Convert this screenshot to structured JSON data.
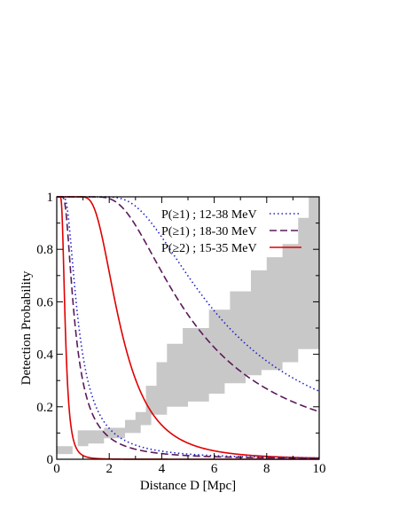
{
  "chart_data": {
    "type": "line",
    "xlabel": "Distance D [Mpc]",
    "ylabel": "Detection Probability",
    "xlim": [
      0,
      10
    ],
    "ylim": [
      0,
      1
    ],
    "x_ticks": [
      0,
      2,
      4,
      6,
      8,
      10
    ],
    "y_ticks": [
      0,
      0.2,
      0.4,
      0.6,
      0.8,
      1
    ],
    "x_tick_labels": [
      "0",
      "2",
      "4",
      "6",
      "8",
      "10"
    ],
    "y_tick_labels": [
      "0",
      "0.2",
      "0.4",
      "0.6",
      "0.8",
      "1"
    ],
    "grid": false,
    "legend_position": "top-right",
    "band": {
      "color": "#c8c8c8",
      "lower": [
        [
          0,
          0.02
        ],
        [
          0.6,
          0.02
        ],
        [
          0.6,
          0.05
        ],
        [
          1.2,
          0.05
        ],
        [
          1.2,
          0.06
        ],
        [
          1.8,
          0.06
        ],
        [
          1.8,
          0.08
        ],
        [
          2.6,
          0.08
        ],
        [
          2.6,
          0.1
        ],
        [
          3.2,
          0.1
        ],
        [
          3.2,
          0.13
        ],
        [
          3.6,
          0.13
        ],
        [
          3.6,
          0.17
        ],
        [
          4.2,
          0.17
        ],
        [
          4.2,
          0.2
        ],
        [
          5.0,
          0.2
        ],
        [
          5.0,
          0.22
        ],
        [
          5.8,
          0.22
        ],
        [
          5.8,
          0.25
        ],
        [
          6.4,
          0.25
        ],
        [
          6.4,
          0.29
        ],
        [
          7.2,
          0.29
        ],
        [
          7.2,
          0.32
        ],
        [
          7.8,
          0.32
        ],
        [
          7.8,
          0.34
        ],
        [
          8.6,
          0.34
        ],
        [
          8.6,
          0.37
        ],
        [
          9.2,
          0.37
        ],
        [
          9.2,
          0.42
        ],
        [
          10,
          0.42
        ]
      ],
      "upper": [
        [
          0,
          0.05
        ],
        [
          0.8,
          0.05
        ],
        [
          0.8,
          0.11
        ],
        [
          1.8,
          0.11
        ],
        [
          1.8,
          0.12
        ],
        [
          2.6,
          0.12
        ],
        [
          2.6,
          0.15
        ],
        [
          3.0,
          0.15
        ],
        [
          3.0,
          0.18
        ],
        [
          3.4,
          0.18
        ],
        [
          3.4,
          0.28
        ],
        [
          3.8,
          0.28
        ],
        [
          3.8,
          0.37
        ],
        [
          4.2,
          0.37
        ],
        [
          4.2,
          0.44
        ],
        [
          4.8,
          0.44
        ],
        [
          4.8,
          0.5
        ],
        [
          5.8,
          0.5
        ],
        [
          5.8,
          0.57
        ],
        [
          6.6,
          0.57
        ],
        [
          6.6,
          0.64
        ],
        [
          7.4,
          0.64
        ],
        [
          7.4,
          0.72
        ],
        [
          8.0,
          0.72
        ],
        [
          8.0,
          0.77
        ],
        [
          8.6,
          0.77
        ],
        [
          8.6,
          0.82
        ],
        [
          9.2,
          0.82
        ],
        [
          9.2,
          0.92
        ],
        [
          9.6,
          0.92
        ],
        [
          9.6,
          1.0
        ],
        [
          10,
          1.0
        ]
      ]
    },
    "series": [
      {
        "name": "P(≥1) ; 12-38 MeV",
        "color": "#2020c8",
        "dash": "dot",
        "k": 0.3,
        "x": [
          0,
          0.5,
          1,
          1.5,
          2,
          2.5,
          3,
          3.5,
          4,
          4.5,
          5,
          5.5,
          6,
          6.5,
          7,
          7.5,
          8,
          8.5,
          9,
          9.5,
          10
        ],
        "y": [
          1,
          1,
          1,
          1,
          0.999,
          0.991,
          0.962,
          0.908,
          0.836,
          0.756,
          0.675,
          0.599,
          0.531,
          0.47,
          0.417,
          0.371,
          0.331,
          0.296,
          0.266,
          0.24,
          0.217
        ]
      },
      {
        "name": "P(≥1) ; 18-30 MeV",
        "color": "#5a1a5a",
        "dash": "dash",
        "k": 0.2,
        "x": [
          0,
          0.5,
          1,
          1.5,
          2,
          2.5,
          3,
          3.5,
          4,
          4.5,
          5,
          5.5,
          6,
          6.5,
          7,
          7.5,
          8,
          8.5,
          9,
          9.5,
          10
        ],
        "y": [
          1,
          1,
          1,
          1,
          0.993,
          0.959,
          0.892,
          0.806,
          0.713,
          0.626,
          0.547,
          0.477,
          0.418,
          0.366,
          0.322,
          0.284,
          0.252,
          0.224,
          0.2,
          0.179,
          0.161
        ]
      },
      {
        "name": "P(≥2) ; 15-35 MeV",
        "color": "#e00000",
        "dash": "solid",
        "k": 0.1,
        "x": [
          0,
          0.5,
          1,
          1.5,
          2,
          2.5,
          3,
          3.5,
          4,
          4.5,
          5,
          5.5,
          6,
          6.5,
          7,
          7.5,
          8,
          8.5,
          9,
          9.5,
          10
        ],
        "y": [
          1,
          1,
          1,
          0.991,
          0.908,
          0.736,
          0.553,
          0.405,
          0.297,
          0.22,
          0.165,
          0.126,
          0.097,
          0.076,
          0.061,
          0.049,
          0.04,
          0.033,
          0.027,
          0.023,
          0.02
        ]
      },
      {
        "name": "",
        "color": "#2020c8",
        "dash": "dot",
        "k": 0.005,
        "x": [
          0.05,
          0.1,
          0.15,
          0.2,
          0.25,
          0.3,
          0.35,
          0.4,
          0.5,
          0.6,
          0.7,
          0.8,
          1,
          1.2,
          1.5,
          2,
          2.5,
          3,
          4,
          5,
          6,
          7,
          8,
          10
        ],
        "y": [
          1,
          1,
          1,
          0.999,
          0.985,
          0.946,
          0.878,
          0.798,
          0.633,
          0.499,
          0.399,
          0.324,
          0.221,
          0.16,
          0.107,
          0.062,
          0.04,
          0.028,
          0.016,
          0.01,
          0.007,
          0.005,
          0.004,
          0.002
        ]
      },
      {
        "name": "",
        "color": "#5a1a5a",
        "dash": "dash",
        "k": 0.0035,
        "x": [
          0.05,
          0.1,
          0.15,
          0.2,
          0.25,
          0.3,
          0.35,
          0.4,
          0.5,
          0.6,
          0.7,
          0.8,
          1,
          1.2,
          1.5,
          2,
          2.5,
          3,
          4,
          5,
          6,
          7,
          8,
          10
        ],
        "y": [
          1,
          1,
          0.999,
          0.983,
          0.932,
          0.852,
          0.764,
          0.68,
          0.537,
          0.427,
          0.344,
          0.281,
          0.195,
          0.142,
          0.096,
          0.055,
          0.036,
          0.025,
          0.014,
          0.009,
          0.006,
          0.004,
          0.003,
          0.002
        ]
      },
      {
        "name": "",
        "color": "#e00000",
        "dash": "solid",
        "k": 0.0018,
        "x": [
          0.05,
          0.1,
          0.15,
          0.2,
          0.25,
          0.3,
          0.35,
          0.4,
          0.45,
          0.5,
          0.6,
          0.7,
          0.8,
          1,
          1.2,
          1.5,
          2,
          3,
          4,
          6,
          8,
          10
        ],
        "y": [
          1,
          1,
          0.998,
          0.925,
          0.761,
          0.58,
          0.43,
          0.32,
          0.24,
          0.185,
          0.113,
          0.075,
          0.052,
          0.029,
          0.018,
          0.01,
          0.005,
          0.002,
          0.001,
          0.0005,
          0.0003,
          0.0002
        ]
      }
    ]
  }
}
